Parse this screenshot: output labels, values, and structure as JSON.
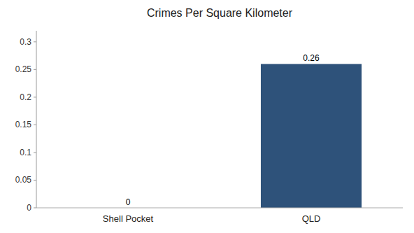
{
  "chart_data": {
    "type": "bar",
    "title": "Crimes Per Square Kilometer",
    "categories": [
      "Shell Pocket",
      "QLD"
    ],
    "values": [
      0,
      0.26
    ],
    "colors": [
      "#3d6fa8",
      "#2e527a"
    ],
    "ylim": [
      0,
      0.32
    ],
    "yticks": [
      0,
      0.05,
      0.1,
      0.15,
      0.2,
      0.25,
      0.3
    ],
    "grid": false,
    "data_labels": true
  }
}
